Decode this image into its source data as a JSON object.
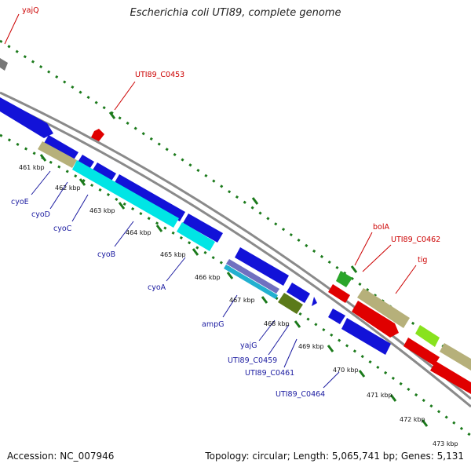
{
  "title": "Escherichia coli UTI89, complete genome",
  "accession": "Accession: NC_007946",
  "summary": "Topology: circular; Length: 5,065,741 bp; Genes: 5,131",
  "colors": {
    "backbone": "#8a8a8a",
    "tick": "#1b7a1b",
    "cds_forward_label": "#cc0000",
    "cds_reverse_label": "#1a1aa0"
  },
  "ticks": [
    "461 kbp",
    "462 kbp",
    "463 kbp",
    "464 kbp",
    "465 kbp",
    "466 kbp",
    "467 kbp",
    "468 kbp",
    "469 kbp",
    "470 kbp",
    "471 kbp",
    "472 kbp",
    "473 kbp"
  ],
  "forward_labels": [
    "yajQ",
    "UTI89_C0453",
    "bolA",
    "UTI89_C0462",
    "tig"
  ],
  "reverse_labels": [
    "cyoE",
    "cyoD",
    "cyoC",
    "cyoB",
    "cyoA",
    "ampG",
    "yajG",
    "UTI89_C0459",
    "UTI89_C0461",
    "UTI89_C0464"
  ]
}
